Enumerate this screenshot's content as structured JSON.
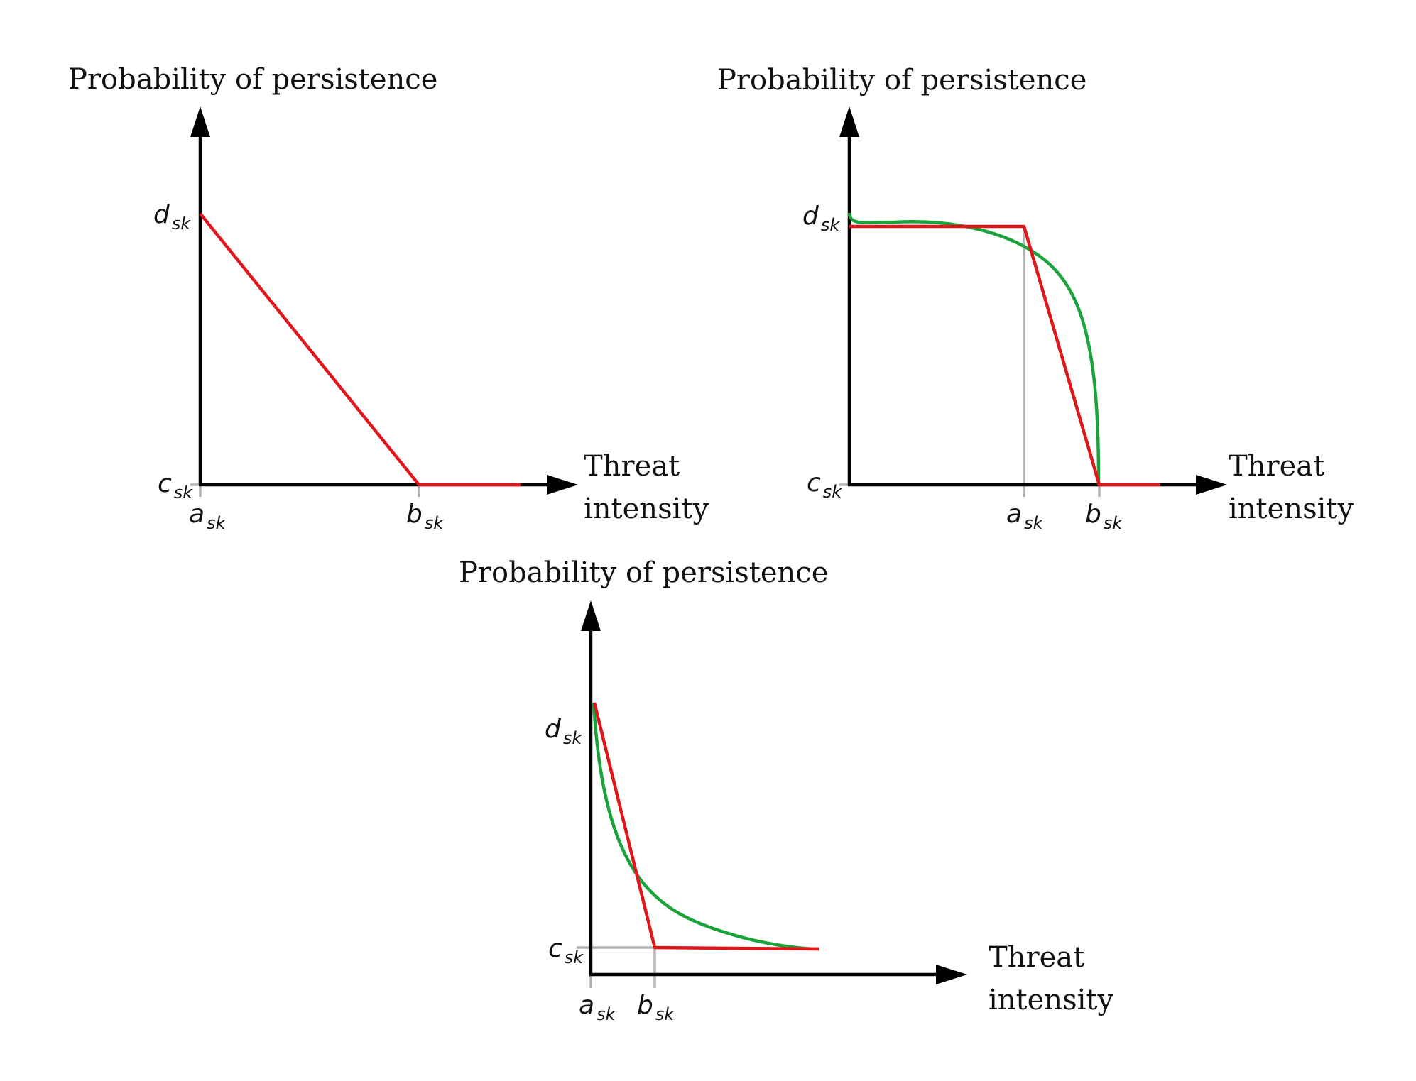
{
  "panels": [
    {
      "id": "top-left",
      "y_axis_title": "Probability of persistence",
      "x_axis_title_line1": "Threat",
      "x_axis_title_line2": "intensity",
      "labels": {
        "d": "d",
        "d_sub": "sk",
        "c": "c",
        "c_sub": "sk",
        "a": "a",
        "a_sub": "sk",
        "b": "b",
        "b_sub": "sk"
      }
    },
    {
      "id": "top-right",
      "y_axis_title": "Probability of persistence",
      "x_axis_title_line1": "Threat",
      "x_axis_title_line2": "intensity",
      "labels": {
        "d": "d",
        "d_sub": "sk",
        "c": "c",
        "c_sub": "sk",
        "a": "a",
        "a_sub": "sk",
        "b": "b",
        "b_sub": "sk"
      }
    },
    {
      "id": "bottom",
      "y_axis_title": "Probability of persistence",
      "x_axis_title_line1": "Threat",
      "x_axis_title_line2": "intensity",
      "labels": {
        "d": "d",
        "d_sub": "sk",
        "c": "c",
        "c_sub": "sk",
        "a": "a",
        "a_sub": "sk",
        "b": "b",
        "b_sub": "sk"
      }
    }
  ],
  "colors": {
    "piecewise_linear": "#e0161b",
    "smooth_fit": "#1aa33a",
    "axes": "#000000",
    "guides": "#b3b3b3"
  }
}
